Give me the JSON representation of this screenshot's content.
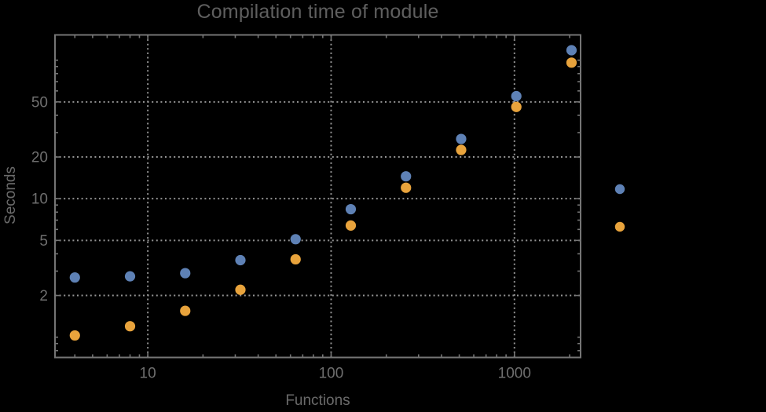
{
  "title": "Compilation time of module",
  "colors": {
    "background": "#000000",
    "frame": "#757575",
    "grid": "#949494",
    "tick_text": "#6f6f6f",
    "title_text": "#5f5f5f",
    "series1": "#5e81b5",
    "series2": "#e8a33c"
  },
  "chart_data": {
    "type": "scatter",
    "title": "Compilation time of module",
    "xlabel": "Functions",
    "ylabel": "Seconds",
    "x_axis": {
      "scale": "log",
      "min": 3.117,
      "max": 2295,
      "major_ticks": [
        10,
        100,
        1000
      ],
      "major_tick_labels": [
        "10",
        "100",
        "1000"
      ],
      "minor_ticks": [
        4,
        5,
        6,
        7,
        8,
        9,
        20,
        30,
        40,
        50,
        60,
        70,
        80,
        90,
        200,
        300,
        400,
        500,
        600,
        700,
        800,
        900,
        2000
      ]
    },
    "y_axis": {
      "scale": "log",
      "min": 0.714,
      "max": 152.2,
      "major_ticks": [
        2,
        5,
        10,
        20,
        50
      ],
      "major_tick_labels": [
        "2",
        "5",
        "10",
        "20",
        "50"
      ],
      "minor_ticks": [
        0.8,
        0.9,
        1,
        3,
        4,
        6,
        7,
        8,
        9,
        30,
        40,
        60,
        70,
        80,
        90,
        100
      ]
    },
    "grid": {
      "x_values": [
        10,
        100,
        1000
      ],
      "y_values": [
        2,
        5,
        10,
        20,
        50
      ],
      "style": "dotted"
    },
    "series": [
      {
        "name": "series-1-blue",
        "color": "#5e81b5",
        "marker": "circle",
        "points": [
          [
            4,
            2.7
          ],
          [
            8,
            2.75
          ],
          [
            16,
            2.9
          ],
          [
            32,
            3.6
          ],
          [
            64,
            5.1
          ],
          [
            128,
            8.4
          ],
          [
            256,
            14.5
          ],
          [
            512,
            27
          ],
          [
            1024,
            55
          ],
          [
            2048,
            118
          ]
        ]
      },
      {
        "name": "series-2-orange",
        "color": "#e8a33c",
        "marker": "circle",
        "points": [
          [
            4,
            1.03
          ],
          [
            8,
            1.2
          ],
          [
            16,
            1.55
          ],
          [
            32,
            2.2
          ],
          [
            64,
            3.65
          ],
          [
            128,
            6.4
          ],
          [
            256,
            12
          ],
          [
            512,
            22.5
          ],
          [
            1024,
            46
          ],
          [
            2048,
            96
          ]
        ]
      }
    ],
    "legend": {
      "position": "right-outside",
      "entries": [
        {
          "series": "series-1-blue",
          "color": "#5e81b5",
          "label": ""
        },
        {
          "series": "series-2-orange",
          "color": "#e8a33c",
          "label": ""
        }
      ]
    }
  }
}
